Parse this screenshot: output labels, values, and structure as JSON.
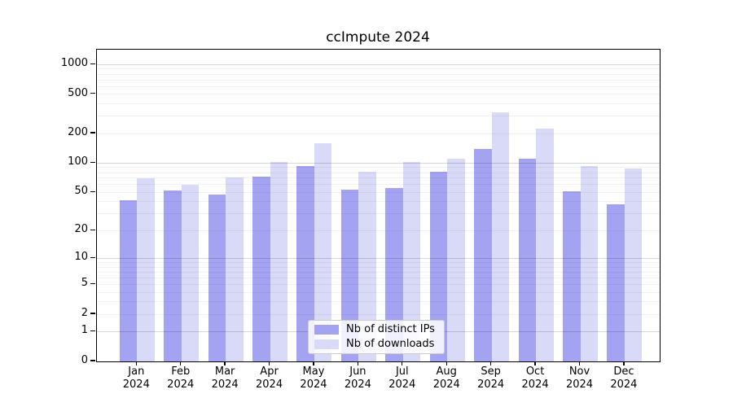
{
  "title": "ccImpute 2024",
  "chart_data": {
    "type": "bar",
    "title": "ccImpute 2024",
    "categories": [
      "Jan 2024",
      "Feb 2024",
      "Mar 2024",
      "Apr 2024",
      "May 2024",
      "Jun 2024",
      "Jul 2024",
      "Aug 2024",
      "Sep 2024",
      "Oct 2024",
      "Nov 2024",
      "Dec 2024"
    ],
    "series": [
      {
        "name": "Nb of distinct IPs",
        "color": "#a3a3f2",
        "values": [
          42,
          52,
          48,
          73,
          94,
          54,
          56,
          81,
          140,
          112,
          51,
          38
        ]
      },
      {
        "name": "Nb of downloads",
        "color": "#d9d9f8",
        "values": [
          70,
          60,
          72,
          102,
          160,
          81,
          103,
          110,
          330,
          225,
          94,
          88
        ]
      }
    ],
    "yscale": "log1p",
    "yticks": [
      0,
      1,
      2,
      5,
      10,
      20,
      50,
      100,
      200,
      500,
      1000
    ],
    "ylim": [
      0,
      1415
    ],
    "xlabel": "",
    "ylabel": "",
    "grid": true,
    "legend_position": "lower center"
  }
}
